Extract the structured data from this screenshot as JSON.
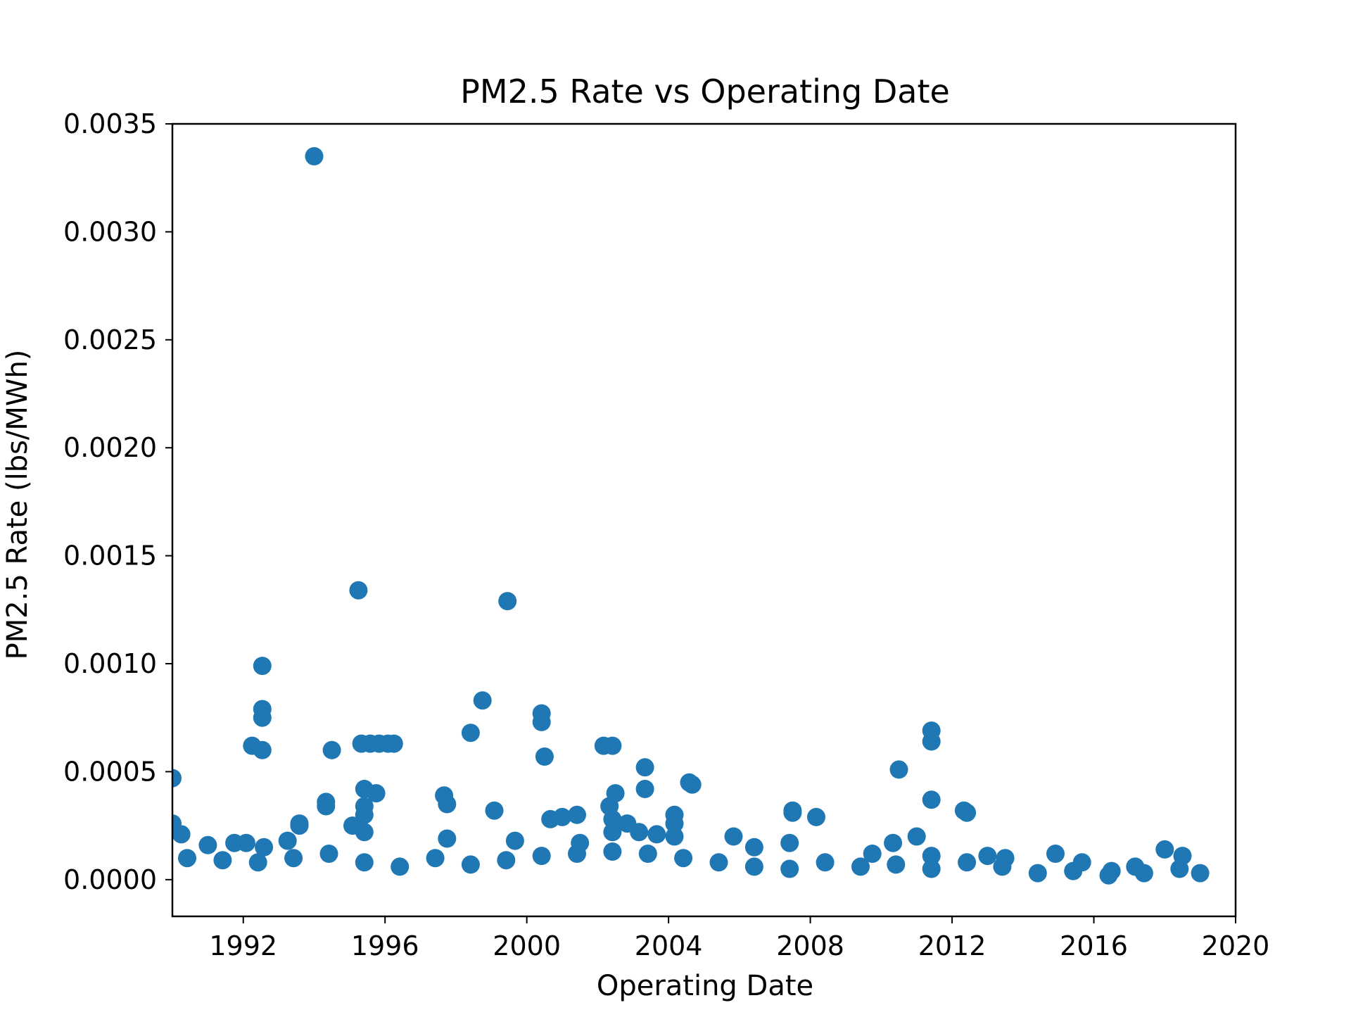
{
  "chart_data": {
    "type": "scatter",
    "title": "PM2.5 Rate vs Operating Date",
    "xlabel": "Operating Date",
    "ylabel": "PM2.5 Rate (lbs/MWh)",
    "x_ticks": [
      "1992",
      "1996",
      "2000",
      "2004",
      "2008",
      "2012",
      "2016",
      "2020"
    ],
    "y_ticks": [
      "0.0000",
      "0.0005",
      "0.0010",
      "0.0015",
      "0.0020",
      "0.0025",
      "0.0030",
      "0.0035"
    ],
    "xlim": [
      "1990-01-01",
      "2020-01-01"
    ],
    "ylim": [
      -0.00017,
      0.0035
    ],
    "grid": false,
    "marker_color": "#1f77b4",
    "series": [
      {
        "points": [
          [
            "1994-01-01",
            0.00335
          ],
          [
            "1995-04-01",
            0.00134
          ],
          [
            "1999-06-15",
            0.00129
          ],
          [
            "1992-07-15",
            0.00099
          ],
          [
            "1992-07-15",
            0.00079
          ],
          [
            "1992-07-15",
            0.00075
          ],
          [
            "1992-04-01",
            0.00062
          ],
          [
            "1992-07-15",
            0.0006
          ],
          [
            "1994-07-01",
            0.0006
          ],
          [
            "1995-05-01",
            0.00063
          ],
          [
            "1995-08-01",
            0.00063
          ],
          [
            "1995-11-01",
            0.00063
          ],
          [
            "1996-02-01",
            0.00063
          ],
          [
            "1996-04-01",
            0.00063
          ],
          [
            "1998-10-01",
            0.00083
          ],
          [
            "1998-06-01",
            0.00068
          ],
          [
            "2000-06-01",
            0.00077
          ],
          [
            "2000-06-01",
            0.00073
          ],
          [
            "2000-07-01",
            0.00057
          ],
          [
            "2002-03-01",
            0.00062
          ],
          [
            "2002-06-01",
            0.00062
          ],
          [
            "2003-05-01",
            0.00052
          ],
          [
            "2004-08-01",
            0.00045
          ],
          [
            "2004-09-01",
            0.00044
          ],
          [
            "2011-06-01",
            0.00069
          ],
          [
            "2011-06-01",
            0.00064
          ],
          [
            "2010-07-01",
            0.00051
          ],
          [
            "1990-01-01",
            0.00047
          ],
          [
            "1995-06-01",
            0.00042
          ],
          [
            "1995-10-01",
            0.0004
          ],
          [
            "1995-06-01",
            0.00034
          ],
          [
            "1995-06-01",
            0.0003
          ],
          [
            "1995-02-01",
            0.00025
          ],
          [
            "1995-06-01",
            0.00022
          ],
          [
            "1994-05-01",
            0.00036
          ],
          [
            "1994-05-01",
            0.00034
          ],
          [
            "1997-09-01",
            0.00039
          ],
          [
            "1997-10-01",
            0.00035
          ],
          [
            "1997-10-01",
            0.00019
          ],
          [
            "1999-02-01",
            0.00032
          ],
          [
            "2002-07-01",
            0.0004
          ],
          [
            "2002-05-01",
            0.00034
          ],
          [
            "2003-05-01",
            0.00042
          ],
          [
            "2004-03-01",
            0.0003
          ],
          [
            "2000-09-01",
            0.00028
          ],
          [
            "2001-01-01",
            0.00029
          ],
          [
            "2001-06-01",
            0.0003
          ],
          [
            "2007-07-01",
            0.00032
          ],
          [
            "2007-07-01",
            0.00031
          ],
          [
            "2008-03-01",
            0.00029
          ],
          [
            "2011-06-01",
            0.00037
          ],
          [
            "2012-05-01",
            0.00032
          ],
          [
            "2012-06-01",
            0.00031
          ],
          [
            "1993-08-01",
            0.00026
          ],
          [
            "1993-08-01",
            0.00025
          ],
          [
            "2002-11-01",
            0.00026
          ],
          [
            "2005-11-01",
            0.0002
          ],
          [
            "2011-01-01",
            0.0002
          ],
          [
            "2006-06-01",
            0.00015
          ],
          [
            "2007-06-01",
            0.00017
          ],
          [
            "2010-05-01",
            0.00017
          ],
          [
            "1990-04-01",
            0.00021
          ],
          [
            "1990-01-01",
            0.00026
          ],
          [
            "1991-01-01",
            0.00016
          ],
          [
            "1991-10-01",
            0.00017
          ],
          [
            "1992-02-01",
            0.00017
          ],
          [
            "1992-08-01",
            0.00015
          ],
          [
            "1993-04-01",
            0.00018
          ],
          [
            "1999-09-01",
            0.00018
          ],
          [
            "2001-07-01",
            0.00017
          ],
          [
            "2004-03-01",
            0.00026
          ],
          [
            "2004-03-01",
            0.0002
          ],
          [
            "2002-06-01",
            0.00028
          ],
          [
            "2002-06-01",
            0.00022
          ],
          [
            "2003-03-01",
            0.00022
          ],
          [
            "2003-09-01",
            0.00021
          ],
          [
            "2018-01-01",
            0.00014
          ],
          [
            "2018-07-01",
            0.00011
          ],
          [
            "2014-12-01",
            0.00012
          ],
          [
            "2009-10-01",
            0.00012
          ],
          [
            "2011-06-01",
            0.00011
          ],
          [
            "2013-01-01",
            0.00011
          ],
          [
            "2013-07-01",
            0.0001
          ],
          [
            "2015-09-01",
            8e-05
          ],
          [
            "2017-03-01",
            6e-05
          ],
          [
            "2019-01-01",
            3e-05
          ],
          [
            "2016-07-01",
            4e-05
          ],
          [
            "1990-06-01",
            0.0001
          ],
          [
            "1991-06-01",
            9e-05
          ],
          [
            "1992-06-01",
            8e-05
          ],
          [
            "1993-06-01",
            0.0001
          ],
          [
            "1994-06-01",
            0.00012
          ],
          [
            "1995-06-01",
            8e-05
          ],
          [
            "1996-06-01",
            6e-05
          ],
          [
            "1997-06-01",
            0.0001
          ],
          [
            "1998-06-01",
            7e-05
          ],
          [
            "1999-06-01",
            9e-05
          ],
          [
            "2000-06-01",
            0.00011
          ],
          [
            "2001-06-01",
            0.00012
          ],
          [
            "2002-06-01",
            0.00013
          ],
          [
            "2003-06-01",
            0.00012
          ],
          [
            "2004-06-01",
            0.0001
          ],
          [
            "2005-06-01",
            8e-05
          ],
          [
            "2006-06-01",
            6e-05
          ],
          [
            "2007-06-01",
            5e-05
          ],
          [
            "2008-06-01",
            8e-05
          ],
          [
            "2009-06-01",
            6e-05
          ],
          [
            "2010-06-01",
            7e-05
          ],
          [
            "2011-06-01",
            5e-05
          ],
          [
            "2012-06-01",
            8e-05
          ],
          [
            "2013-06-01",
            6e-05
          ],
          [
            "2014-06-01",
            3e-05
          ],
          [
            "2015-06-01",
            4e-05
          ],
          [
            "2016-06-01",
            2e-05
          ],
          [
            "2017-06-01",
            3e-05
          ],
          [
            "2018-06-01",
            5e-05
          ]
        ]
      }
    ]
  }
}
